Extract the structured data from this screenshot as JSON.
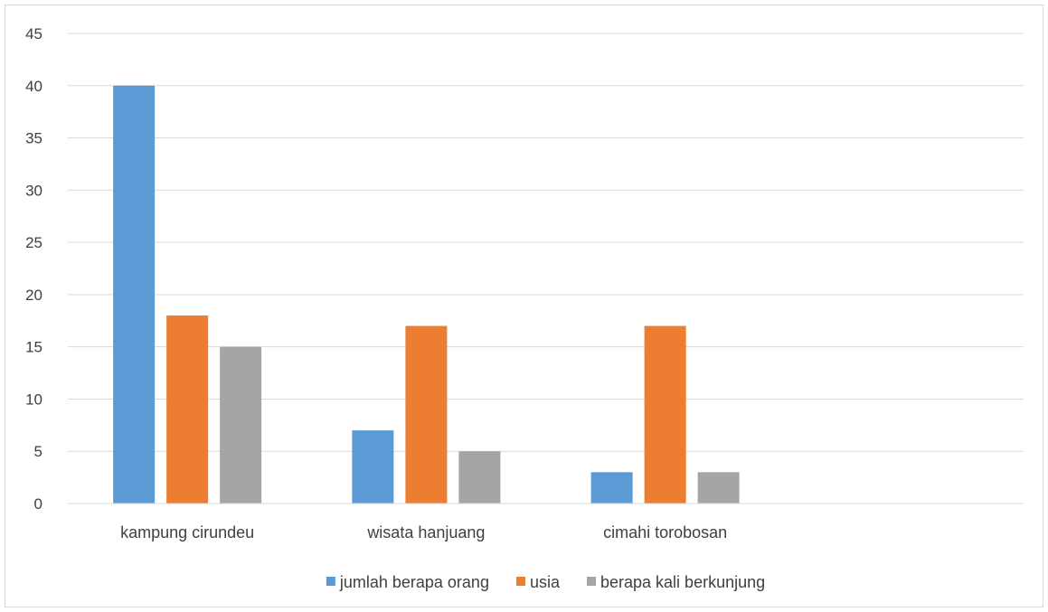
{
  "chart_data": {
    "type": "bar",
    "categories": [
      "kampung cirundeu",
      "wisata hanjuang",
      "cimahi torobosan",
      ""
    ],
    "series": [
      {
        "name": "jumlah berapa orang",
        "values": [
          40,
          7,
          3,
          null
        ],
        "color": "#5b9bd5"
      },
      {
        "name": "usia",
        "values": [
          18,
          17,
          17,
          null
        ],
        "color": "#ed7d31"
      },
      {
        "name": "berapa kali berkunjung",
        "values": [
          15,
          5,
          3,
          null
        ],
        "color": "#a5a5a5"
      }
    ],
    "y_ticks": [
      "0",
      "5",
      "10",
      "15",
      "20",
      "25",
      "30",
      "35",
      "40",
      "45"
    ],
    "ylim": [
      0,
      45
    ],
    "grid": true,
    "legend_position": "bottom"
  }
}
